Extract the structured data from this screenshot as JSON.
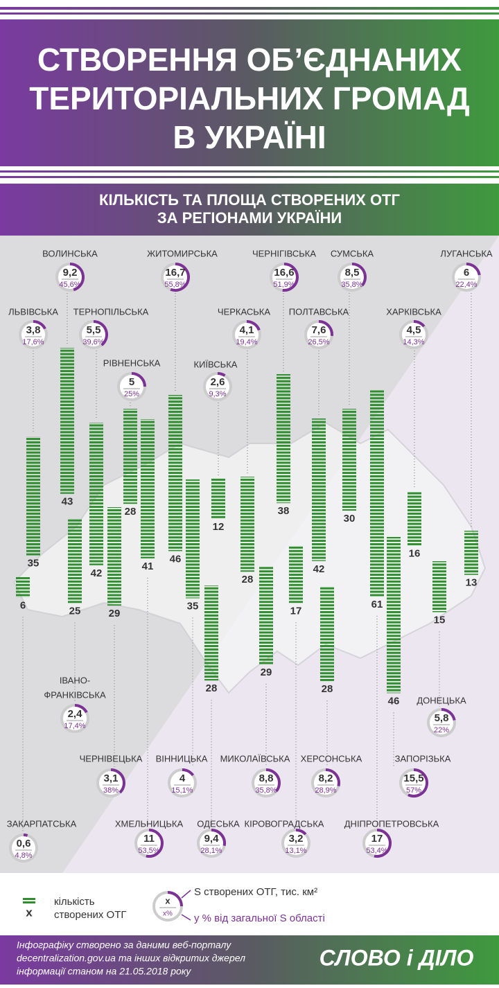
{
  "header": {
    "title": [
      "СТВОРЕННЯ ОБ’ЄДНАНИХ",
      "ТЕРИТОРІАЛЬНИХ ГРОМАД",
      "В УКРАЇНІ"
    ],
    "subtitle": [
      "КІЛЬКІСТЬ ТА ПЛОЩА СТВОРЕНИХ ОТГ",
      "ЗА РЕГІОНАМИ УКРАЇНИ"
    ]
  },
  "regions": [
    {
      "name": "ВОЛИНСЬКА",
      "area": {
        "value": 9.2,
        "label": "9,2"
      },
      "share": {
        "value": 45.6,
        "label": "45,6%"
      },
      "count": 43
    },
    {
      "name": "ЖИТОМИРСЬКА",
      "area": {
        "value": 16.7,
        "label": "16,7"
      },
      "share": {
        "value": 55.8,
        "label": "55,8%"
      },
      "count": 46
    },
    {
      "name": "ЧЕРНІГІВСЬКА",
      "area": {
        "value": 16.6,
        "label": "16,6"
      },
      "share": {
        "value": 51.9,
        "label": "51,9%"
      },
      "count": 38
    },
    {
      "name": "СУМСЬКА",
      "area": {
        "value": 8.5,
        "label": "8,5"
      },
      "share": {
        "value": 35.8,
        "label": "35,8%"
      },
      "count": 30
    },
    {
      "name": "ЛУГАНСЬКА",
      "area": 6,
      "share": {
        "value": 22.4,
        "label": "22,4%"
      },
      "count": 13
    },
    {
      "name": "ЛЬВІВСЬКА",
      "area": {
        "value": 3.8,
        "label": "3,8"
      },
      "share": {
        "value": 17.6,
        "label": "17,6%"
      },
      "count": 35
    },
    {
      "name": "ТЕРНОПІЛЬСЬКА",
      "area": {
        "value": 5.5,
        "label": "5,5"
      },
      "share": {
        "value": 39.6,
        "label": "39,6%"
      },
      "count": 42
    },
    {
      "name": "ЧЕРКАСЬКА",
      "area": {
        "value": 4.1,
        "label": "4,1"
      },
      "share": {
        "value": 19.4,
        "label": "19,4%"
      },
      "count": 28
    },
    {
      "name": "ПОЛТАВСЬКА",
      "area": {
        "value": 7.6,
        "label": "7,6"
      },
      "share": {
        "value": 26.5,
        "label": "26,5%"
      },
      "count": 42
    },
    {
      "name": "ХАРКІВСЬКА",
      "area": {
        "value": 4.5,
        "label": "4,5"
      },
      "share": {
        "value": 14.3,
        "label": "14,3%"
      },
      "count": 16
    },
    {
      "name": "РІВНЕНСЬКА",
      "area": 5,
      "share": {
        "value": 25,
        "label": "25%"
      },
      "count": 28
    },
    {
      "name": "КИЇВСЬКА",
      "area": {
        "value": 2.6,
        "label": "2,6"
      },
      "share": {
        "value": 9.3,
        "label": "9,3%"
      },
      "count": 12
    },
    {
      "name": "ЗАКАРПАТСЬКА",
      "area": {
        "value": 0.6,
        "label": "0,6"
      },
      "share": {
        "value": 4.8,
        "label": "4,8%"
      },
      "count": 6
    },
    {
      "name": [
        "ІВАНО-",
        "ФРАНКІВСЬКА"
      ],
      "area": {
        "value": 2.4,
        "label": "2,4"
      },
      "share": {
        "value": 17.4,
        "label": "17,4%"
      },
      "count": 25
    },
    {
      "name": "ЧЕРНІВЕЦЬКА",
      "area": {
        "value": 3.1,
        "label": "3,1"
      },
      "share": {
        "value": 38,
        "label": "38%"
      },
      "count": 29
    },
    {
      "name": "ХМЕЛЬНИЦЬКА",
      "area": 11,
      "share": {
        "value": 53.5,
        "label": "53,5%"
      },
      "count": 41
    },
    {
      "name": "ВІННИЦЬКА",
      "area": 4,
      "share": {
        "value": 15.1,
        "label": "15,1%"
      },
      "count": 35
    },
    {
      "name": "ОДЕСЬКА",
      "area": {
        "value": 9.4,
        "label": "9,4"
      },
      "share": {
        "value": 28.1,
        "label": "28,1%"
      },
      "count": 28
    },
    {
      "name": "МИКОЛАЇВСЬКА",
      "area": {
        "value": 8.8,
        "label": "8,8"
      },
      "share": {
        "value": 35.8,
        "label": "35,8%"
      },
      "count": 29
    },
    {
      "name": "КІРОВОГРАДСЬКА",
      "area": {
        "value": 3.2,
        "label": "3,2"
      },
      "share": {
        "value": 13.1,
        "label": "13,1%"
      },
      "count": 17
    },
    {
      "name": "ХЕРСОНСЬКА",
      "area": {
        "value": 8.2,
        "label": "8,2"
      },
      "share": {
        "value": 28.9,
        "label": "28,9%"
      },
      "count": 28
    },
    {
      "name": "ДНІПРОПЕТРОВСЬКА",
      "area": 17,
      "share": {
        "value": 53.4,
        "label": "53,4%"
      },
      "count": 61
    },
    {
      "name": "ЗАПОРІЗЬКА",
      "area": {
        "value": 15.5,
        "label": "15,5"
      },
      "share": {
        "value": 57,
        "label": "57%"
      },
      "count": 46
    },
    {
      "name": "ДОНЕЦЬКА",
      "area": {
        "value": 5.8,
        "label": "5,8"
      },
      "share": {
        "value": 22,
        "label": "22%"
      },
      "count": 15
    }
  ],
  "legend": {
    "count_symbol": "x",
    "count_text": [
      "кількість",
      "створених ОТГ"
    ],
    "ring_value": "x",
    "ring_percent": "x%",
    "area_text": "S створених ОТГ, тис. км²",
    "share_text": "у % від загальної S області"
  },
  "footer": {
    "note": [
      "Інфографіку створено за даними веб-порталу",
      "decentralization.gov.ua та інших відкритих джерел",
      "інформації станом на 21.05.2018 року"
    ],
    "logo": "СЛОВО і ДІЛО"
  }
}
